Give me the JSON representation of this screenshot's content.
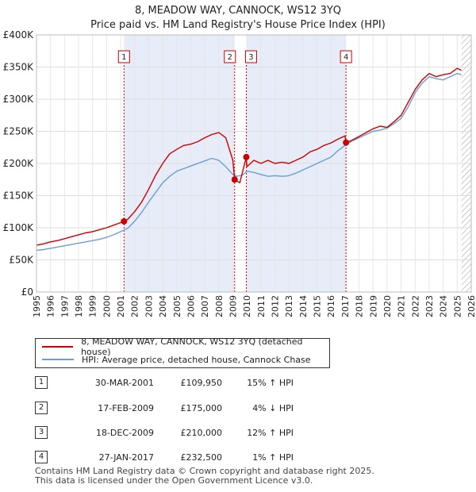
{
  "header": {
    "title_line1": "8, MEADOW WAY, CANNOCK, WS12 3YQ",
    "title_line2": "Price paid vs. HM Land Registry's House Price Index (HPI)"
  },
  "chart_data": {
    "type": "line",
    "title": "8, MEADOW WAY, CANNOCK, WS12 3YQ — Price paid vs. HM Land Registry's House Price Index (HPI)",
    "xlim": [
      1995,
      2026
    ],
    "ylim": [
      0,
      400000
    ],
    "y_ticks": [
      0,
      50000,
      100000,
      150000,
      200000,
      250000,
      300000,
      350000,
      400000
    ],
    "y_tick_labels": [
      "£0",
      "£50K",
      "£100K",
      "£150K",
      "£200K",
      "£250K",
      "£300K",
      "£350K",
      "£400K"
    ],
    "x_ticks": [
      1995,
      1996,
      1997,
      1998,
      1999,
      2000,
      2001,
      2002,
      2003,
      2004,
      2005,
      2006,
      2007,
      2008,
      2009,
      2010,
      2011,
      2012,
      2013,
      2014,
      2015,
      2016,
      2017,
      2018,
      2019,
      2020,
      2021,
      2022,
      2023,
      2024,
      2025,
      2026
    ],
    "grid": true,
    "series": [
      {
        "name": "8, MEADOW WAY, CANNOCK, WS12 3YQ (detached house)",
        "color": "#cc0000",
        "x": [
          1995.0,
          1995.5,
          1996.0,
          1996.5,
          1997.0,
          1997.5,
          1998.0,
          1998.5,
          1999.0,
          1999.5,
          2000.0,
          2000.5,
          2001.0,
          2001.24,
          2001.5,
          2002.0,
          2002.5,
          2003.0,
          2003.5,
          2004.0,
          2004.5,
          2005.0,
          2005.5,
          2006.0,
          2006.5,
          2007.0,
          2007.5,
          2008.0,
          2008.5,
          2009.0,
          2009.13,
          2009.5,
          2009.96,
          2010.0,
          2010.5,
          2011.0,
          2011.5,
          2012.0,
          2012.5,
          2013.0,
          2013.5,
          2014.0,
          2014.5,
          2015.0,
          2015.5,
          2016.0,
          2016.5,
          2017.0,
          2017.07,
          2017.5,
          2018.0,
          2018.5,
          2019.0,
          2019.5,
          2020.0,
          2020.5,
          2021.0,
          2021.5,
          2022.0,
          2022.5,
          2023.0,
          2023.5,
          2024.0,
          2024.5,
          2025.0,
          2025.3
        ],
        "y": [
          73000,
          75000,
          78000,
          80000,
          83000,
          86000,
          89000,
          92000,
          94000,
          97000,
          100000,
          104000,
          108000,
          109950,
          113000,
          125000,
          140000,
          160000,
          182000,
          200000,
          215000,
          222000,
          228000,
          230000,
          234000,
          240000,
          245000,
          248000,
          240000,
          205000,
          175000,
          170000,
          210000,
          195000,
          205000,
          200000,
          205000,
          200000,
          202000,
          200000,
          205000,
          210000,
          218000,
          222000,
          228000,
          232000,
          238000,
          243000,
          232500,
          236000,
          242000,
          248000,
          254000,
          258000,
          256000,
          265000,
          275000,
          295000,
          315000,
          330000,
          340000,
          335000,
          338000,
          340000,
          348000,
          345000
        ]
      },
      {
        "name": "HPI: Average price, detached house, Cannock Chase",
        "color": "#6a9fd4",
        "x": [
          1995.0,
          1995.5,
          1996.0,
          1996.5,
          1997.0,
          1997.5,
          1998.0,
          1998.5,
          1999.0,
          1999.5,
          2000.0,
          2000.5,
          2001.0,
          2001.5,
          2002.0,
          2002.5,
          2003.0,
          2003.5,
          2004.0,
          2004.5,
          2005.0,
          2005.5,
          2006.0,
          2006.5,
          2007.0,
          2007.5,
          2008.0,
          2008.5,
          2009.0,
          2009.3,
          2009.7,
          2010.0,
          2010.5,
          2011.0,
          2011.5,
          2012.0,
          2012.5,
          2013.0,
          2013.5,
          2014.0,
          2014.5,
          2015.0,
          2015.5,
          2016.0,
          2016.5,
          2017.0,
          2017.5,
          2018.0,
          2018.5,
          2019.0,
          2019.5,
          2020.0,
          2020.5,
          2021.0,
          2021.5,
          2022.0,
          2022.5,
          2023.0,
          2023.5,
          2024.0,
          2024.5,
          2025.0,
          2025.3
        ],
        "y": [
          65000,
          66000,
          68000,
          70000,
          72000,
          74000,
          76000,
          78000,
          80000,
          82000,
          85000,
          89000,
          94000,
          99000,
          110000,
          124000,
          140000,
          155000,
          170000,
          180000,
          188000,
          192000,
          196000,
          200000,
          204000,
          208000,
          205000,
          195000,
          183000,
          180000,
          182000,
          188000,
          186000,
          183000,
          180000,
          181000,
          180000,
          181000,
          185000,
          190000,
          195000,
          200000,
          205000,
          210000,
          220000,
          228000,
          235000,
          240000,
          245000,
          250000,
          252000,
          255000,
          262000,
          270000,
          288000,
          310000,
          325000,
          335000,
          332000,
          330000,
          335000,
          340000,
          338000
        ]
      }
    ],
    "markers": [
      {
        "label": "1",
        "x": 2001.24,
        "y": 109950
      },
      {
        "label": "2",
        "x": 2009.13,
        "y": 175000
      },
      {
        "label": "3",
        "x": 2009.96,
        "y": 210000
      },
      {
        "label": "4",
        "x": 2017.07,
        "y": 232500
      }
    ],
    "shaded_ranges": [
      [
        2001.24,
        2009.13
      ],
      [
        2009.96,
        2017.07
      ]
    ],
    "hatched_from": 2025.3
  },
  "legend": {
    "items": [
      {
        "label": "8, MEADOW WAY, CANNOCK, WS12 3YQ (detached house)",
        "color": "#cc0000"
      },
      {
        "label": "HPI: Average price, detached house, Cannock Chase",
        "color": "#6a9fd4"
      }
    ]
  },
  "sales": [
    {
      "num": "1",
      "date": "30-MAR-2001",
      "price": "£109,950",
      "hpi": "15% ↑ HPI"
    },
    {
      "num": "2",
      "date": "17-FEB-2009",
      "price": "£175,000",
      "hpi": "4% ↓ HPI"
    },
    {
      "num": "3",
      "date": "18-DEC-2009",
      "price": "£210,000",
      "hpi": "12% ↑ HPI"
    },
    {
      "num": "4",
      "date": "27-JAN-2017",
      "price": "£232,500",
      "hpi": "1% ↑ HPI"
    }
  ],
  "footer": {
    "line1": "Contains HM Land Registry data © Crown copyright and database right 2025.",
    "line2": "This data is licensed under the Open Government Licence v3.0."
  }
}
